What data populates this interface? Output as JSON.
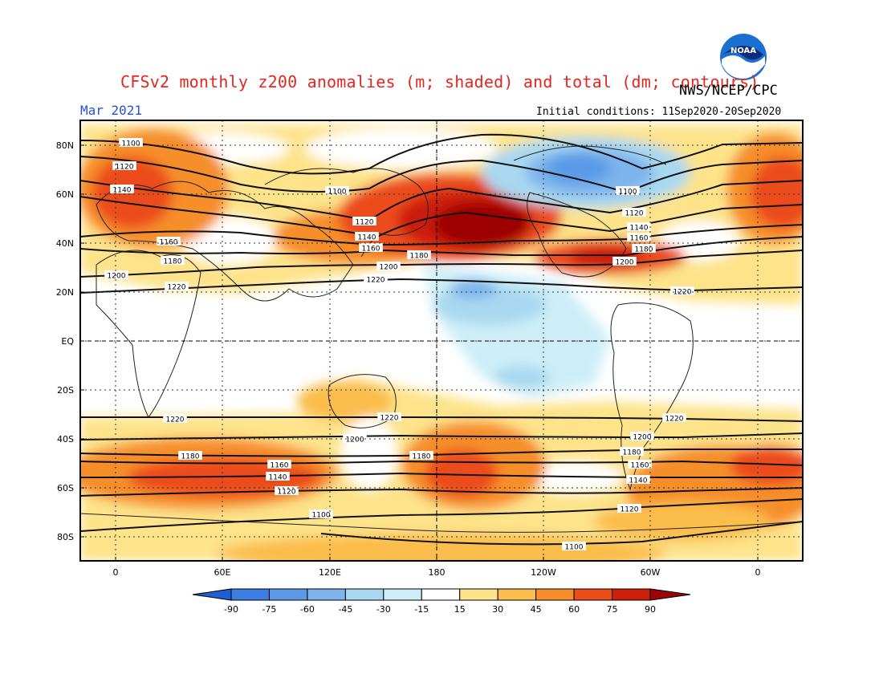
{
  "header": {
    "title": "CFSv2 monthly z200 anomalies (m; shaded) and total (dm; contours)",
    "agency": "NWS/NCEP/CPC",
    "month": "Mar 2021",
    "initial_conditions": "Initial conditions: 11Sep2020-20Sep2020",
    "logo_text": "NOAA"
  },
  "map": {
    "lat_labels": [
      "80N",
      "60N",
      "40N",
      "20N",
      "EQ",
      "20S",
      "40S",
      "60S",
      "80S"
    ],
    "lon_labels": [
      "0",
      "60E",
      "120E",
      "180",
      "120W",
      "60W",
      "0"
    ]
  },
  "contours": {
    "labels": [
      "1100",
      "1120",
      "1140",
      "1160",
      "1180",
      "1200",
      "1220"
    ]
  },
  "colorbar": {
    "ticks": [
      "-90",
      "-75",
      "-60",
      "-45",
      "-30",
      "-15",
      "15",
      "30",
      "45",
      "60",
      "75",
      "90"
    ],
    "colors": [
      "#1e5fd6",
      "#3b7de0",
      "#5a9ae6",
      "#7db4ec",
      "#a9d8f0",
      "#cdeef8",
      "#ffffff",
      "#fde38a",
      "#fbbd4c",
      "#f68e2b",
      "#ec4b1a",
      "#cc1f0c",
      "#9c0606"
    ]
  },
  "colors": {
    "title": "#e4261f",
    "month": "#2a4fd6",
    "frame": "#000000"
  }
}
